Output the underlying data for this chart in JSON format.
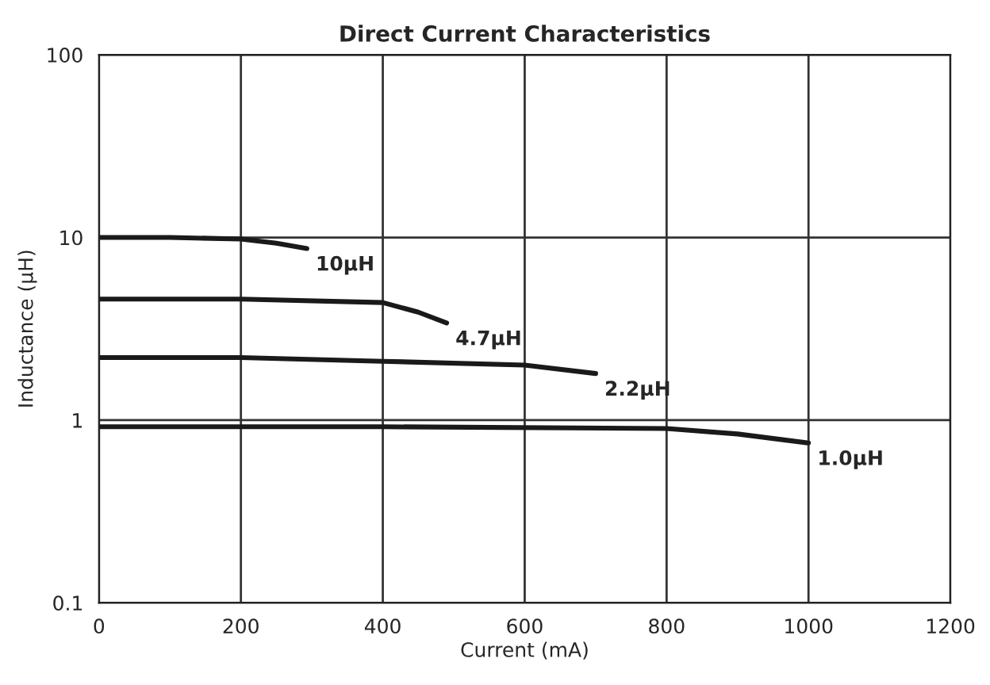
{
  "chart_data": {
    "type": "line",
    "title": "Direct Current Characteristics",
    "xlabel": "Current (mA)",
    "ylabel": "Inductance (μH)",
    "log": "y",
    "xlim": [
      0,
      1200
    ],
    "xticks": [
      0,
      200,
      400,
      600,
      800,
      1000,
      1200
    ],
    "ylim": [
      0.1,
      100
    ],
    "yticks": [
      0.1,
      1,
      10,
      100
    ],
    "grid": true,
    "marker": "none",
    "line_style": "solid",
    "series": [
      {
        "color": "#1a1a1a",
        "x": [
          0,
          100,
          200,
          250,
          293
        ],
        "values": [
          10,
          10,
          9.8,
          9.3,
          8.7
        ]
      },
      {
        "color": "#1a1a1a",
        "x": [
          0,
          200,
          400,
          450,
          490
        ],
        "values": [
          4.6,
          4.6,
          4.4,
          3.9,
          3.4
        ]
      },
      {
        "color": "#1a1a1a",
        "x": [
          0,
          200,
          400,
          600,
          700
        ],
        "values": [
          2.2,
          2.2,
          2.1,
          2.0,
          1.8
        ]
      },
      {
        "color": "#1a1a1a",
        "x": [
          0,
          400,
          800,
          900,
          1000
        ],
        "values": [
          0.92,
          0.92,
          0.9,
          0.84,
          0.75
        ]
      }
    ],
    "annotations": [
      {
        "text": "10μH",
        "x": 293,
        "y": 8.7
      },
      {
        "text": "4.7μH",
        "x": 490,
        "y": 3.4
      },
      {
        "text": "2.2μH",
        "x": 700,
        "y": 1.8
      },
      {
        "text": "1.0μH",
        "x": 1000,
        "y": 0.75
      }
    ]
  }
}
